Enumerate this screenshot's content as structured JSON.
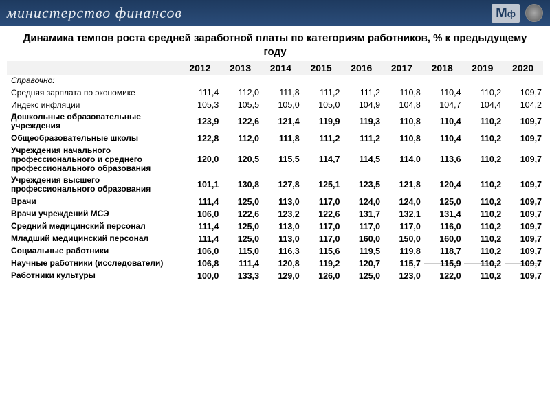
{
  "header": {
    "ministry": "министерство финансов",
    "logo_m": "М",
    "logo_f": "ф"
  },
  "title": "Динамика темпов роста средней заработной платы по категориям работников, % к предыдущему году",
  "years": [
    "2012",
    "2013",
    "2014",
    "2015",
    "2016",
    "2017",
    "2018",
    "2019",
    "2020"
  ],
  "ref_head": "Справочно:",
  "rows": [
    {
      "label": "Средняя зарплата по экономике",
      "bold": false,
      "v": [
        "111,4",
        "112,0",
        "111,8",
        "111,2",
        "111,2",
        "110,8",
        "110,4",
        "110,2",
        "109,7"
      ]
    },
    {
      "label": "Индекс инфляции",
      "bold": false,
      "v": [
        "105,3",
        "105,5",
        "105,0",
        "105,0",
        "104,9",
        "104,8",
        "104,7",
        "104,4",
        "104,2"
      ]
    },
    {
      "label": "Дошкольные образовательные учреждения",
      "bold": true,
      "v": [
        "123,9",
        "122,6",
        "121,4",
        "119,9",
        "119,3",
        "110,8",
        "110,4",
        "110,2",
        "109,7"
      ]
    },
    {
      "label": "Общеобразовательные школы",
      "bold": true,
      "v": [
        "122,8",
        "112,0",
        "111,8",
        "111,2",
        "111,2",
        "110,8",
        "110,4",
        "110,2",
        "109,7"
      ]
    },
    {
      "label": "Учреждения начального профессионального и среднего профессионального образования",
      "bold": true,
      "v": [
        "120,0",
        "120,5",
        "115,5",
        "114,7",
        "114,5",
        "114,0",
        "113,6",
        "110,2",
        "109,7"
      ]
    },
    {
      "label": "Учреждения высшего профессионального образования",
      "bold": true,
      "v": [
        "101,1",
        "130,8",
        "127,8",
        "125,1",
        "123,5",
        "121,8",
        "120,4",
        "110,2",
        "109,7"
      ]
    },
    {
      "label": "Врачи",
      "bold": true,
      "v": [
        "111,4",
        "125,0",
        "113,0",
        "117,0",
        "124,0",
        "124,0",
        "125,0",
        "110,2",
        "109,7"
      ]
    },
    {
      "label": "Врачи учреждений МСЭ",
      "bold": true,
      "v": [
        "106,0",
        "122,6",
        "123,2",
        "122,6",
        "131,7",
        "132,1",
        "131,4",
        "110,2",
        "109,7"
      ]
    },
    {
      "label": "Средний медицинский персонал",
      "bold": true,
      "v": [
        "111,4",
        "125,0",
        "113,0",
        "117,0",
        "117,0",
        "117,0",
        "116,0",
        "110,2",
        "109,7"
      ]
    },
    {
      "label": "Младший медицинский персонал",
      "bold": true,
      "v": [
        "111,4",
        "125,0",
        "113,0",
        "117,0",
        "160,0",
        "150,0",
        "160,0",
        "110,2",
        "109,7"
      ]
    },
    {
      "label": "Социальные работники",
      "bold": true,
      "v": [
        "106,0",
        "115,0",
        "116,3",
        "115,6",
        "119,5",
        "119,8",
        "118,7",
        "110,2",
        "109,7"
      ]
    },
    {
      "label": "Научные работники (исследователи)",
      "bold": true,
      "strike": true,
      "v": [
        "106,8",
        "111,4",
        "120,8",
        "119,2",
        "120,7",
        "115,7",
        "115,9",
        "110,2",
        "109,7"
      ]
    },
    {
      "label": "Работники культуры",
      "bold": true,
      "v": [
        "100,0",
        "133,3",
        "129,0",
        "126,0",
        "125,0",
        "123,0",
        "122,0",
        "110,2",
        "109,7"
      ]
    }
  ]
}
